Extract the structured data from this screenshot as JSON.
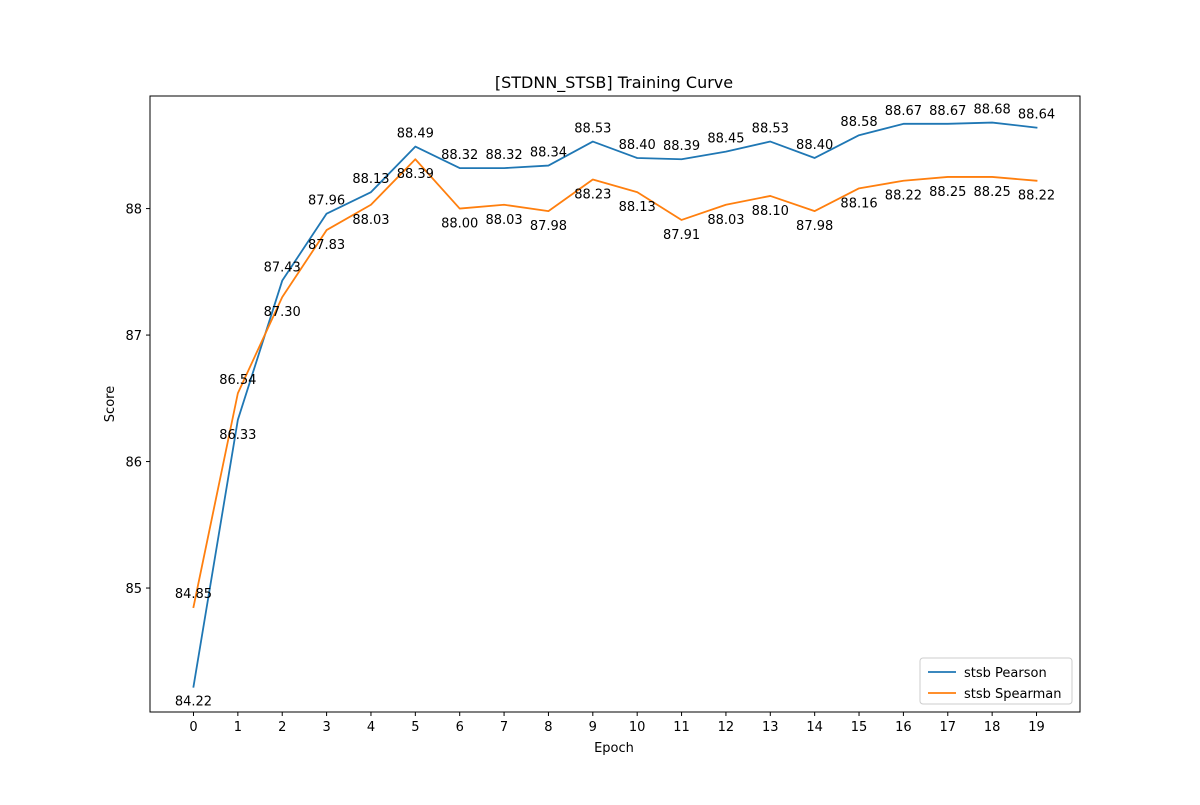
{
  "chart_data": {
    "type": "line",
    "title": "[STDNN_STSB] Training Curve",
    "xlabel": "Epoch",
    "ylabel": "Score",
    "x": [
      0,
      1,
      2,
      3,
      4,
      5,
      6,
      7,
      8,
      9,
      10,
      11,
      12,
      13,
      14,
      15,
      16,
      17,
      18,
      19
    ],
    "xlim": [
      -0.98,
      19.98
    ],
    "ylim": [
      84.02,
      88.89
    ],
    "yticks": [
      85,
      86,
      87,
      88
    ],
    "grid": false,
    "legend_position": "lower-right",
    "series": [
      {
        "name": "stsb Pearson",
        "color": "#1f77b4",
        "values": [
          84.22,
          86.33,
          87.43,
          87.96,
          88.13,
          88.49,
          88.32,
          88.32,
          88.34,
          88.53,
          88.4,
          88.39,
          88.45,
          88.53,
          88.4,
          88.58,
          88.67,
          88.67,
          88.68,
          88.64
        ],
        "labels": [
          "84.22",
          "86.33",
          "87.43",
          "87.96",
          "88.13",
          "88.49",
          "88.32",
          "88.32",
          "88.34",
          "88.53",
          "88.40",
          "88.39",
          "88.45",
          "88.53",
          "88.40",
          "88.58",
          "88.67",
          "88.67",
          "88.68",
          "88.64"
        ]
      },
      {
        "name": "stsb Spearman",
        "color": "#ff7f0e",
        "values": [
          84.85,
          86.54,
          87.3,
          87.83,
          88.03,
          88.39,
          88.0,
          88.03,
          87.98,
          88.23,
          88.13,
          87.91,
          88.03,
          88.1,
          87.98,
          88.16,
          88.22,
          88.25,
          88.25,
          88.22
        ],
        "labels": [
          "84.85",
          "86.54",
          "87.30",
          "87.83",
          "88.03",
          "88.39",
          "88.00",
          "88.03",
          "87.98",
          "88.23",
          "88.13",
          "87.91",
          "88.03",
          "88.10",
          "87.98",
          "88.16",
          "88.22",
          "88.25",
          "88.25",
          "88.22"
        ]
      }
    ]
  }
}
